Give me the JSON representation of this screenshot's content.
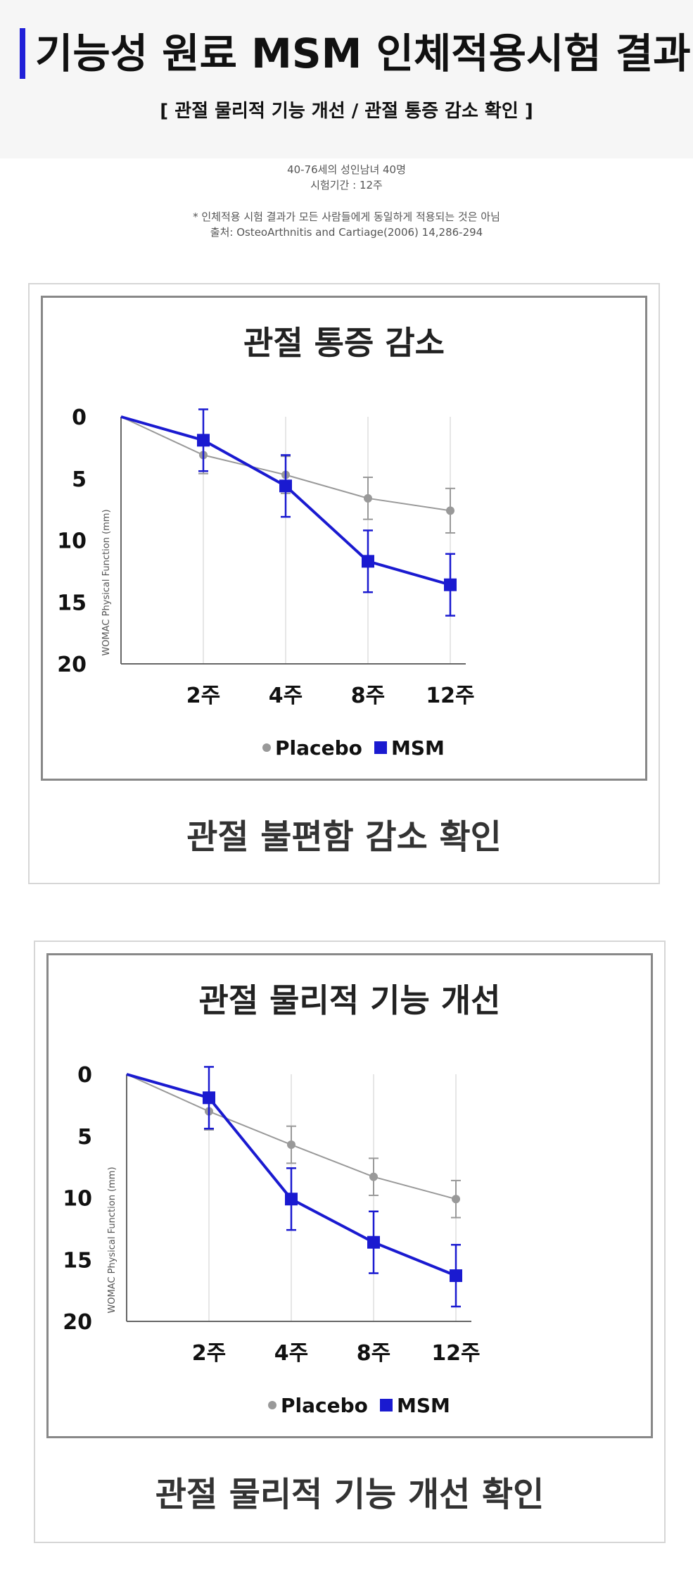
{
  "header": {
    "title": "기능성 원료 MSM 인체적용시험 결과",
    "subtitle": "[ 관절 물리적 기능 개선 / 관절 통증 감소 확인 ]"
  },
  "info": {
    "subjects": "40-76세의 성인남녀 40명",
    "period": "시험기간 : 12주",
    "disclaimer": "* 인체적용 시험 결과가 모든 사람들에게 동일하게 적용되는 것은 아님",
    "source": "출처: OsteoArthnitis and Cartiage(2006) 14,286-294"
  },
  "chart_data": [
    {
      "type": "line",
      "title": "관절 통증 감소",
      "caption": "관절 불편함 감소 확인",
      "ylabel": "WOMAC Physical Function (mm)",
      "xlabel": "",
      "categories": [
        "",
        "2주",
        "4주",
        "8주",
        "12주"
      ],
      "ylim": [
        0,
        20
      ],
      "y_inverted": true,
      "yticks": [
        "0",
        "5",
        "10",
        "15",
        "20"
      ],
      "grid": "vertical",
      "legend": "bottom",
      "series": [
        {
          "name": "Placebo",
          "color": "#999999",
          "marker": "circle",
          "values": [
            0,
            3.1,
            4.7,
            6.6,
            7.6
          ],
          "errors": [
            0,
            1.5,
            1.5,
            1.7,
            1.8
          ]
        },
        {
          "name": "MSM",
          "color": "#1a1ad0",
          "marker": "square",
          "values": [
            0,
            1.9,
            5.6,
            11.7,
            13.6
          ],
          "errors": [
            0,
            2.5,
            2.5,
            2.5,
            2.5
          ]
        }
      ]
    },
    {
      "type": "line",
      "title": "관절 물리적 기능 개선",
      "caption": "관절 물리적 기능 개선 확인",
      "ylabel": "WOMAC Physical Function (mm)",
      "xlabel": "",
      "categories": [
        "",
        "2주",
        "4주",
        "8주",
        "12주"
      ],
      "ylim": [
        0,
        20
      ],
      "y_inverted": true,
      "yticks": [
        "0",
        "5",
        "10",
        "15",
        "20"
      ],
      "grid": "vertical",
      "legend": "bottom",
      "series": [
        {
          "name": "Placebo",
          "color": "#999999",
          "marker": "circle",
          "values": [
            0,
            3.0,
            5.7,
            8.3,
            10.1
          ],
          "errors": [
            0,
            1.5,
            1.5,
            1.5,
            1.5
          ]
        },
        {
          "name": "MSM",
          "color": "#1a1ad0",
          "marker": "square",
          "values": [
            0,
            1.9,
            10.1,
            13.6,
            16.3
          ],
          "errors": [
            0,
            2.5,
            2.5,
            2.5,
            2.5
          ]
        }
      ]
    }
  ]
}
